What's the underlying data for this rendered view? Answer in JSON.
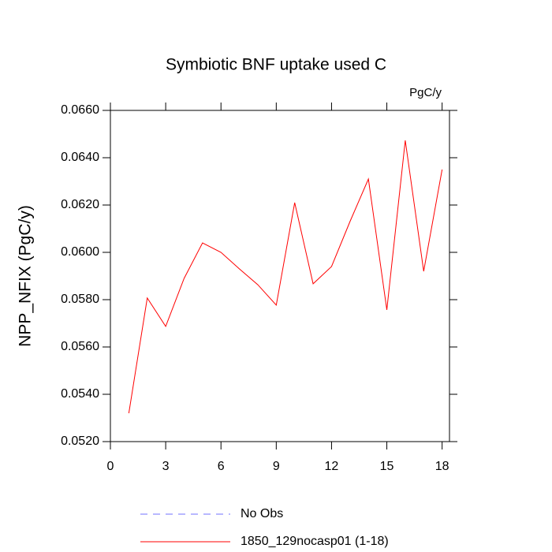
{
  "chart_data": {
    "type": "line",
    "title": "Symbiotic BNF uptake used C",
    "units": "PgC/y",
    "ylabel": "NPP_NFIX  (PgC/y)",
    "x": [
      1,
      2,
      3,
      4,
      5,
      6,
      7,
      8,
      9,
      10,
      11,
      12,
      13,
      14,
      15,
      16,
      17,
      18
    ],
    "series": [
      {
        "color": "#ff0000",
        "values": [
          0.0532,
          0.05807,
          0.05687,
          0.0589,
          0.0604,
          0.06,
          0.0593,
          0.05863,
          0.05777,
          0.0621,
          0.05867,
          0.0594,
          0.0613,
          0.0631,
          0.05757,
          0.06473,
          0.0592,
          0.0635
        ]
      }
    ],
    "xlim": [
      0,
      18.4
    ],
    "ylim": [
      0.052,
      0.066
    ],
    "xticks": [
      0,
      3,
      6,
      9,
      12,
      15,
      18
    ],
    "yticks": [
      {
        "value": 0.052,
        "label": "0.0520"
      },
      {
        "value": 0.054,
        "label": "0.0540"
      },
      {
        "value": 0.056,
        "label": "0.0560"
      },
      {
        "value": 0.058,
        "label": "0.0580"
      },
      {
        "value": 0.06,
        "label": "0.0600"
      },
      {
        "value": 0.062,
        "label": "0.0620"
      },
      {
        "value": 0.064,
        "label": "0.0640"
      },
      {
        "value": 0.066,
        "label": "0.0660"
      }
    ],
    "legend": [
      {
        "label": "No Obs",
        "color": "#7070ff",
        "dash": "dashed"
      },
      {
        "label": "1850_129nocasp01 (1-18)",
        "color": "#ff0000",
        "dash": "solid"
      }
    ]
  }
}
